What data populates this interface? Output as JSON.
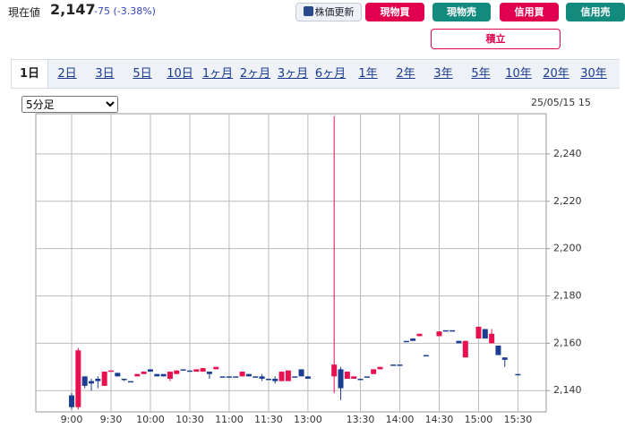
{
  "header": {
    "label": "現在値",
    "price": "2,147",
    "change": "-75 (-3.38%)"
  },
  "buttons": [
    "株価更新",
    "現物買",
    "現物売",
    "信用買",
    "信用売",
    "積立"
  ],
  "tabs": [
    "1日",
    "2日",
    "3日",
    "5日",
    "10日",
    "1ヶ月",
    "2ヶ月",
    "3ヶ月",
    "6ヶ月",
    "1年",
    "2年",
    "3年",
    "5年",
    "10年",
    "20年",
    "30年"
  ],
  "interval_select": "5分足",
  "chart_data": {
    "type": "candlestick",
    "date": "25/05/15 15",
    "categories": [
      "9:00",
      null,
      null,
      null,
      null,
      null,
      "9:30",
      null,
      null,
      null,
      null,
      null,
      "10:00",
      null,
      null,
      null,
      null,
      null,
      "10:30",
      null,
      null,
      null,
      null,
      null,
      "11:00",
      null,
      null,
      null,
      null,
      null,
      "11:30",
      null,
      null,
      null,
      null,
      null,
      "13:00",
      null,
      null,
      null,
      null,
      null,
      null,
      null,
      "13:30",
      null,
      null,
      null,
      null,
      null,
      "14:00",
      null,
      null,
      null,
      null,
      null,
      "14:30",
      null,
      null,
      null,
      null,
      null,
      "15:00",
      null,
      null,
      null,
      null,
      null,
      "15:30"
    ],
    "open": [
      2138,
      2133,
      2146,
      2144,
      2145,
      2142,
      2148,
      2147.5,
      2145,
      2144,
      2146,
      2147,
      2149,
      2147,
      2147,
      2145,
      2147,
      2149,
      2148.5,
      2148,
      2148,
      2148,
      2149,
      2146,
      2146,
      2146,
      2146,
      2147,
      2146,
      2146,
      2145,
      2145,
      2144,
      2144,
      2146,
      2149,
      2146,
      null,
      null,
      null,
      2146,
      2149,
      2145,
      2145,
      2145,
      2146,
      2147,
      2149,
      null,
      2151,
      2151,
      2161,
      2162,
      2163,
      2155,
      null,
      2163,
      2165.5,
      2165.5,
      2161,
      2154,
      null,
      2162,
      2166,
      2160,
      2159,
      2154,
      null,
      2147
    ],
    "high": [
      2139,
      2158,
      2146,
      2145,
      2146,
      2148,
      2148.5,
      2147.5,
      2145,
      2144,
      2147,
      2148,
      2149,
      2147,
      2147,
      2148,
      2148.5,
      2149,
      2148.5,
      2149,
      2149.5,
      2148,
      2150,
      2146,
      2146,
      2146,
      2148,
      2147,
      2146,
      2147,
      2145,
      2146,
      2148,
      2148.5,
      2146,
      2149,
      2146,
      null,
      null,
      null,
      2256,
      2150,
      2148,
      2146,
      2145,
      2146,
      2149,
      2150,
      null,
      2151,
      2151,
      2161,
      2162,
      2164,
      2155,
      null,
      2165,
      2165.5,
      2165.5,
      2161,
      2161,
      null,
      2167,
      2166,
      2166,
      2159,
      2154,
      null,
      2147
    ],
    "low": [
      2132,
      2132,
      2141,
      2140,
      2141,
      2142,
      2148,
      2146,
      2144,
      2144,
      2146,
      2147,
      2148,
      2146,
      2146,
      2144,
      2147,
      2149,
      2148.5,
      2148,
      2148,
      2145,
      2149,
      2146,
      2146,
      2146,
      2146,
      2146,
      2145.5,
      2144,
      2145,
      2143,
      2144,
      2144,
      2146,
      2146,
      2145,
      null,
      null,
      null,
      2139,
      2136,
      2145,
      2145,
      2145,
      2146,
      2147,
      2149,
      null,
      2151,
      2151,
      2161,
      2161,
      2163,
      2155,
      null,
      2163,
      2165.5,
      2165.5,
      2160,
      2154,
      null,
      2162,
      2162,
      2160,
      2155,
      2150,
      null,
      2147
    ],
    "close": [
      2133,
      2157,
      2142,
      2143,
      2144,
      2148,
      2148.5,
      2146,
      2144.5,
      2144,
      2147,
      2148,
      2148,
      2146,
      2146,
      2148,
      2148.5,
      2149,
      2148.5,
      2149,
      2149.5,
      2147,
      2150,
      2146,
      2146,
      2146,
      2148,
      2146,
      2145.5,
      2145,
      2145,
      2144,
      2148,
      2148.5,
      2146,
      2146,
      2145,
      null,
      null,
      null,
      2151,
      2141,
      2148,
      2146,
      2145,
      2146,
      2149,
      2150,
      null,
      2151,
      2151,
      2161,
      2161,
      2164,
      2155,
      null,
      2165,
      2165.5,
      2165.5,
      2160,
      2161,
      null,
      2167,
      2162,
      2164,
      2155,
      2153,
      null,
      2147
    ],
    "up_color": "#e8114f",
    "down_color": "#1b3e92",
    "ylim": [
      2131,
      2257
    ],
    "yticks": [
      {
        "value": 2140,
        "label": "2,140"
      },
      {
        "value": 2160,
        "label": "2,160"
      },
      {
        "value": 2180,
        "label": "2,180"
      },
      {
        "value": 2200,
        "label": "2,200"
      },
      {
        "value": 2220,
        "label": "2,220"
      },
      {
        "value": 2240,
        "label": "2,240"
      }
    ],
    "grid": true
  }
}
